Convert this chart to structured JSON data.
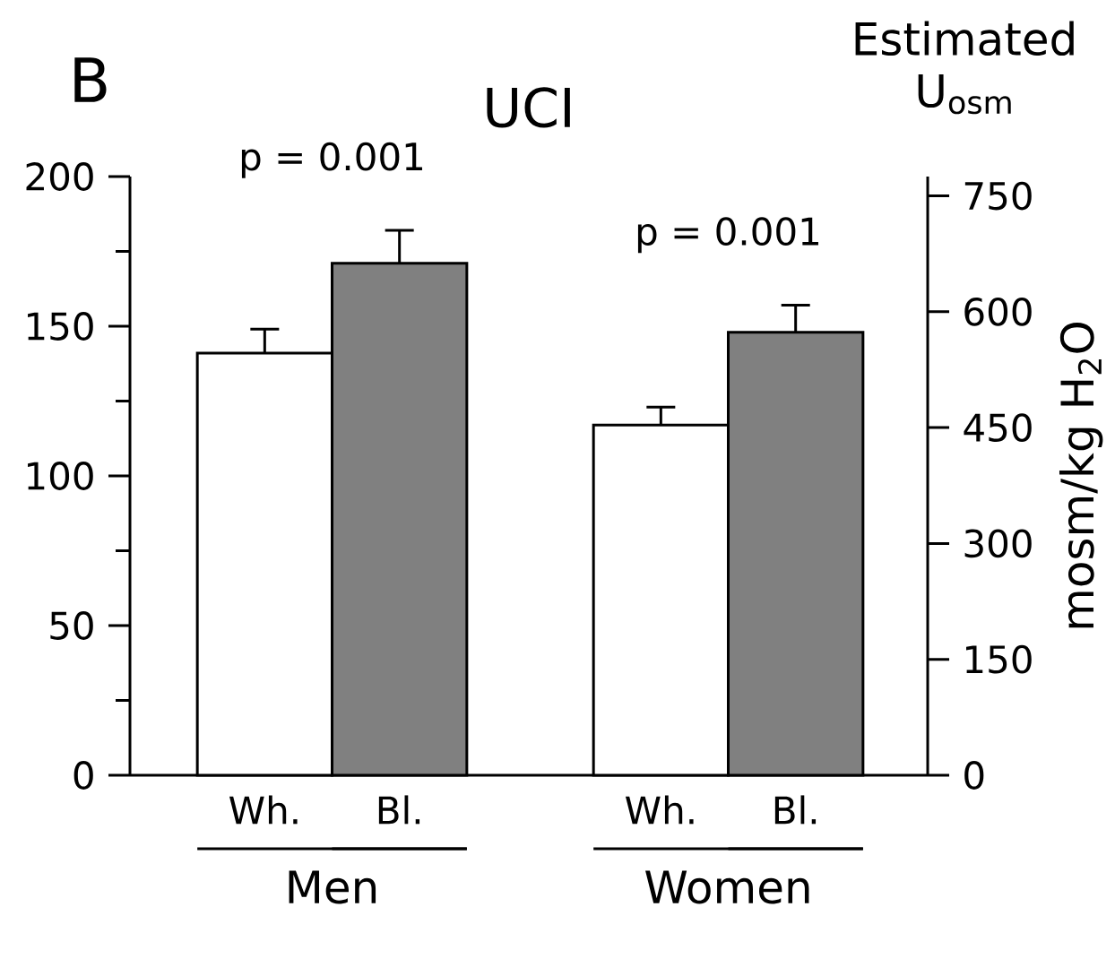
{
  "chart_data": {
    "type": "bar",
    "title": "UCI",
    "categories": [
      "Wh.",
      "Bl.",
      "Wh.",
      "Bl."
    ],
    "values": [
      141,
      171,
      117,
      148
    ],
    "errors": [
      8,
      11,
      6,
      9
    ],
    "colors": [
      "#ffffff",
      "#808080",
      "#ffffff",
      "#808080"
    ],
    "ylim": [
      0,
      200
    ],
    "yticks": [
      0,
      50,
      100,
      150,
      200
    ],
    "y2lim": [
      0,
      775
    ],
    "y2ticks": [
      0,
      150,
      300,
      450,
      600,
      750
    ],
    "y2label": "mosm/kg H$_{2}$O",
    "annotations": [
      "B",
      "Estimated U$_{osm}$",
      "p = 0.001",
      "p = 0.001",
      "Men",
      "Women"
    ],
    "grid": false
  }
}
